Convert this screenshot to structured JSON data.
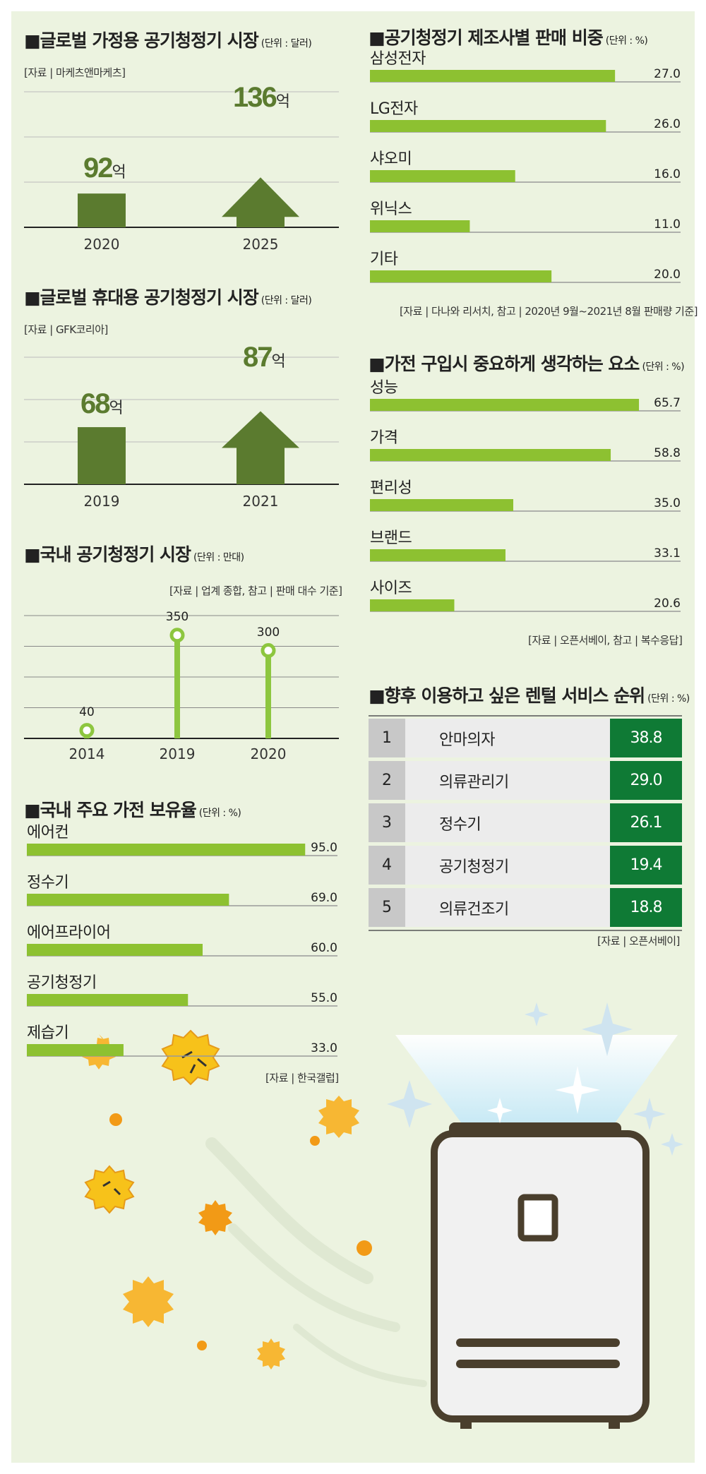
{
  "colors": {
    "background": "#ecf3e0",
    "bar_green": "#8dc131",
    "dark_green": "#5b7b2f",
    "lollipop_green": "#8dc63f",
    "rank_value_bg": "#0f7a35",
    "grid": "#333333"
  },
  "icons": [
    "air-purifier-illustration",
    "dust-particle-icon",
    "sparkle-icon"
  ],
  "sections": {
    "home_purifier": {
      "title": "■글로벌 가정용 공기청정기 시장",
      "unit": "(단위 : 달러)",
      "source": "[자료 | 마케츠앤마케츠]",
      "bar_value_label": "92",
      "arrow_value_label": "136",
      "suffix": "억"
    },
    "portable_purifier": {
      "title": "■글로벌 휴대용 공기청정기 시장",
      "unit": "(단위 : 달러)",
      "source": "[자료 | GFK코리아]",
      "bar_value_label": "68",
      "arrow_value_label": "87",
      "suffix": "억"
    },
    "domestic_market": {
      "title": "■국내 공기청정기 시장",
      "unit": "(단위 : 만대)",
      "source": "[자료 | 업계 종합, 참고 | 판매 대수 기준]"
    },
    "appliance_ownership": {
      "title": "■국내 주요 가전 보유율",
      "unit": "(단위 : %)",
      "source": "[자료 | 한국갤럽]"
    },
    "maker_share": {
      "title": "■공기청정기 제조사별 판매 비중",
      "unit": "(단위 : %)",
      "source": "[자료 | 다나와 리서치, 참고 | 2020년 9월~2021년 8월 판매량 기준]"
    },
    "purchase_factors": {
      "title": "■가전 구입시 중요하게 생각하는 요소",
      "unit": "(단위 : %)",
      "source": "[자료 | 오픈서베이, 참고 | 복수응답]"
    },
    "rental_ranking": {
      "title": "■향후 이용하고 싶은 렌털 서비스 순위",
      "unit": "(단위 : %)",
      "source": "[자료 | 오픈서베이]"
    }
  },
  "chart_data": [
    {
      "id": "home_purifier",
      "type": "bar",
      "title": "■글로벌 가정용 공기청정기 시장",
      "unit": "(단위 : 달러)",
      "categories": [
        "2020",
        "2025"
      ],
      "values": [
        92,
        136
      ],
      "value_labels": [
        "92억",
        "136억"
      ]
    },
    {
      "id": "portable_purifier",
      "type": "bar",
      "title": "■글로벌 휴대용 공기청정기 시장",
      "unit": "(단위 : 달러)",
      "categories": [
        "2019",
        "2021"
      ],
      "values": [
        68,
        87
      ],
      "value_labels": [
        "68억",
        "87억"
      ]
    },
    {
      "id": "domestic_market",
      "type": "bar",
      "title": "■국내 공기청정기 시장",
      "unit": "(단위 : 만대)",
      "categories": [
        "2014",
        "2019",
        "2020"
      ],
      "values": [
        40,
        350,
        300
      ],
      "value_labels": [
        "40",
        "350",
        "300"
      ],
      "ylim": [
        0,
        400
      ]
    },
    {
      "id": "appliance_ownership",
      "type": "bar",
      "orientation": "horizontal",
      "title": "■국내 주요 가전 보유율",
      "unit": "(단위 : %)",
      "categories": [
        "에어컨",
        "정수기",
        "에어프라이어",
        "공기청정기",
        "제습기"
      ],
      "values": [
        95.0,
        69.0,
        60.0,
        55.0,
        33.0
      ],
      "value_labels": [
        "95.0",
        "69.0",
        "60.0",
        "55.0",
        "33.0"
      ],
      "xlim": [
        0,
        100
      ]
    },
    {
      "id": "maker_share",
      "type": "bar",
      "orientation": "horizontal",
      "title": "■공기청정기 제조사별 판매 비중",
      "unit": "(단위 : %)",
      "categories": [
        "삼성전자",
        "LG전자",
        "샤오미",
        "위닉스",
        "기타"
      ],
      "values": [
        27.0,
        26.0,
        16.0,
        11.0,
        20.0
      ],
      "value_labels": [
        "27.0",
        "26.0",
        "16.0",
        "11.0",
        "20.0"
      ],
      "xlim": [
        0,
        35
      ]
    },
    {
      "id": "purchase_factors",
      "type": "bar",
      "orientation": "horizontal",
      "title": "■가전 구입시 중요하게 생각하는 요소",
      "unit": "(단위 : %)",
      "categories": [
        "성능",
        "가격",
        "편리성",
        "브랜드",
        "사이즈"
      ],
      "values": [
        65.7,
        58.8,
        35.0,
        33.1,
        20.6
      ],
      "value_labels": [
        "65.7",
        "58.8",
        "35.0",
        "33.1",
        "20.6"
      ],
      "xlim": [
        0,
        75
      ]
    },
    {
      "id": "rental_ranking",
      "type": "table",
      "title": "■향후 이용하고 싶은 렌털 서비스 순위",
      "unit": "(단위 : %)",
      "rows": [
        {
          "rank": "1",
          "name": "안마의자",
          "value": "38.8"
        },
        {
          "rank": "2",
          "name": "의류관리기",
          "value": "29.0"
        },
        {
          "rank": "3",
          "name": "정수기",
          "value": "26.1"
        },
        {
          "rank": "4",
          "name": "공기청정기",
          "value": "19.4"
        },
        {
          "rank": "5",
          "name": "의류건조기",
          "value": "18.8"
        }
      ]
    }
  ]
}
